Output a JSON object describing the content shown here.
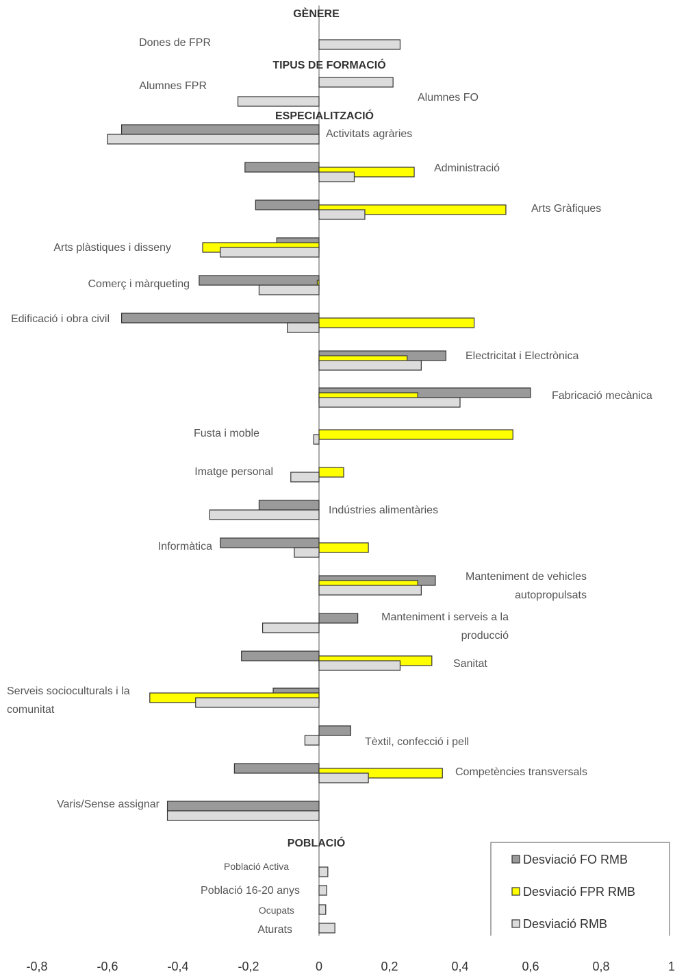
{
  "chart_data": {
    "type": "bar",
    "orientation": "horizontal",
    "xlim": [
      -0.8,
      1
    ],
    "x_ticks": [
      "-0,8",
      "-0,6",
      "-0,4",
      "-0,2",
      "0",
      "0,2",
      "0,4",
      "0,6",
      "0,8",
      "1"
    ],
    "x_tick_values": [
      -0.8,
      -0.6,
      -0.4,
      -0.2,
      0,
      0.2,
      0.4,
      0.6,
      0.8,
      1
    ],
    "legend": {
      "placement": "bottom-right",
      "entries": [
        {
          "key": "fo",
          "label": "Desviació FO RMB",
          "color": "#9a9a9a"
        },
        {
          "key": "fpr",
          "label": "Desviació FPR RMB",
          "color": "#ffff00"
        },
        {
          "key": "rmb",
          "label": "Desviació RMB",
          "color": "#dcdcdc"
        }
      ]
    },
    "sections": [
      {
        "title": "GÈNERE"
      },
      {
        "title": "TIPUS DE FORMACIÓ"
      },
      {
        "title": "ESPECIALITZACIÓ"
      },
      {
        "title": "POBLACIÓ"
      }
    ],
    "groups": [
      {
        "label": "Dones de FPR",
        "bars": [
          {
            "series": "rmb",
            "value": 0.23
          }
        ]
      },
      {
        "label": "Alumnes FPR",
        "bars": [
          {
            "series": "rmb",
            "value": 0.21
          }
        ]
      },
      {
        "label": "Alumnes FO",
        "bars": [
          {
            "series": "rmb",
            "value": -0.23
          }
        ]
      },
      {
        "label": "Activitats agràries",
        "bars": [
          {
            "series": "fo",
            "value": -0.56
          },
          {
            "series": "rmb",
            "value": -0.6
          }
        ]
      },
      {
        "label": "Administració",
        "bars": [
          {
            "series": "fo",
            "value": -0.21
          },
          {
            "series": "fpr",
            "value": 0.27
          },
          {
            "series": "rmb",
            "value": 0.1
          }
        ]
      },
      {
        "label": "Arts Gràfiques",
        "bars": [
          {
            "series": "fo",
            "value": -0.18
          },
          {
            "series": "fpr",
            "value": 0.53
          },
          {
            "series": "rmb",
            "value": 0.13
          }
        ]
      },
      {
        "label": "Arts plàstiques i disseny",
        "bars": [
          {
            "series": "fo",
            "value": -0.12
          },
          {
            "series": "fpr",
            "value": -0.33
          },
          {
            "series": "rmb",
            "value": -0.28
          }
        ]
      },
      {
        "label": "Comerç i màrqueting",
        "bars": [
          {
            "series": "fo",
            "value": -0.34
          },
          {
            "series": "fpr",
            "value": -0.005
          },
          {
            "series": "rmb",
            "value": -0.17
          }
        ]
      },
      {
        "label": "Edificació i obra civil",
        "bars": [
          {
            "series": "fo",
            "value": -0.56
          },
          {
            "series": "fpr",
            "value": 0.44
          },
          {
            "series": "rmb",
            "value": -0.09
          }
        ]
      },
      {
        "label": "Electricitat i Electrònica",
        "bars": [
          {
            "series": "fo",
            "value": 0.36
          },
          {
            "series": "fpr",
            "value": 0.25
          },
          {
            "series": "rmb",
            "value": 0.29
          }
        ]
      },
      {
        "label": "Fabricació mecànica",
        "bars": [
          {
            "series": "fo",
            "value": 0.6
          },
          {
            "series": "fpr",
            "value": 0.28
          },
          {
            "series": "rmb",
            "value": 0.4
          }
        ]
      },
      {
        "label": "Fusta i moble",
        "bars": [
          {
            "series": "fpr",
            "value": 0.55
          },
          {
            "series": "rmb",
            "value": -0.015
          }
        ]
      },
      {
        "label": "Imatge personal",
        "bars": [
          {
            "series": "fpr",
            "value": 0.07
          },
          {
            "series": "rmb",
            "value": -0.08
          }
        ]
      },
      {
        "label": "Indústries alimentàries",
        "bars": [
          {
            "series": "fo",
            "value": -0.17
          },
          {
            "series": "rmb",
            "value": -0.31
          }
        ]
      },
      {
        "label": "Informàtica",
        "bars": [
          {
            "series": "fo",
            "value": -0.28
          },
          {
            "series": "fpr",
            "value": 0.14
          },
          {
            "series": "rmb",
            "value": -0.07
          }
        ]
      },
      {
        "label": "Manteniment de vehicles autopropulsats",
        "bars": [
          {
            "series": "fo",
            "value": 0.33
          },
          {
            "series": "fpr",
            "value": 0.28
          },
          {
            "series": "rmb",
            "value": 0.29
          }
        ]
      },
      {
        "label": "Manteniment i serveis a la producció",
        "bars": [
          {
            "series": "fo",
            "value": 0.11
          },
          {
            "series": "rmb",
            "value": -0.16
          }
        ]
      },
      {
        "label": "Sanitat",
        "bars": [
          {
            "series": "fo",
            "value": -0.22
          },
          {
            "series": "fpr",
            "value": 0.32
          },
          {
            "series": "rmb",
            "value": 0.23
          }
        ]
      },
      {
        "label": "Serveis socioculturals i la comunitat",
        "bars": [
          {
            "series": "fo",
            "value": -0.13
          },
          {
            "series": "fpr",
            "value": -0.48
          },
          {
            "series": "rmb",
            "value": -0.35
          }
        ]
      },
      {
        "label": "Tèxtil, confecció i pell",
        "bars": [
          {
            "series": "fo",
            "value": 0.09
          },
          {
            "series": "rmb",
            "value": -0.04
          }
        ]
      },
      {
        "label": "Competències transversals",
        "bars": [
          {
            "series": "fo",
            "value": -0.24
          },
          {
            "series": "fpr",
            "value": 0.35
          },
          {
            "series": "rmb",
            "value": 0.14
          }
        ]
      },
      {
        "label": "Varis/Sense assignar",
        "bars": [
          {
            "series": "fo",
            "value": -0.43
          },
          {
            "series": "rmb",
            "value": -0.43
          }
        ]
      },
      {
        "label": "Població Activa",
        "bars": [
          {
            "series": "rmb",
            "value": 0.025
          }
        ]
      },
      {
        "label": "Població 16-20 anys",
        "bars": [
          {
            "series": "rmb",
            "value": 0.022
          }
        ]
      },
      {
        "label": "Ocupats",
        "bars": [
          {
            "series": "rmb",
            "value": 0.019
          }
        ]
      },
      {
        "label": "Aturats",
        "bars": [
          {
            "series": "rmb",
            "value": 0.045
          }
        ]
      }
    ]
  }
}
